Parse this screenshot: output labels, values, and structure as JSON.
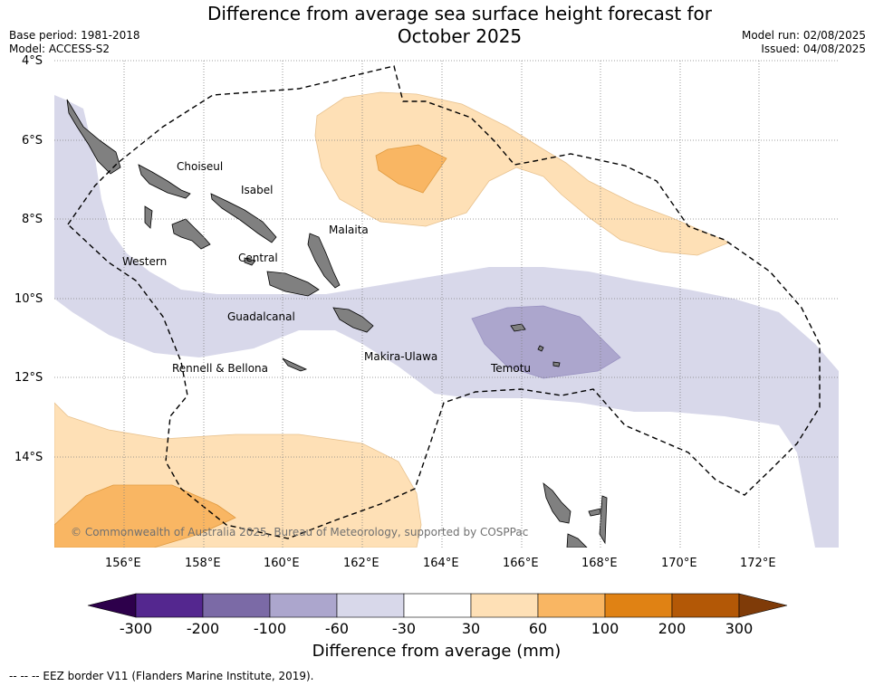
{
  "title": "Difference from average sea surface height forecast for October 2025",
  "title_line1": "Difference from average sea surface height forecast for",
  "title_line2": "October 2025",
  "meta_left": [
    "Base period: 1981-2018",
    "Model: ACCESS-S2"
  ],
  "meta_right": [
    "Model run: 02/08/2025",
    "Issued: 04/08/2025"
  ],
  "lat_ticks": [
    "4°S",
    "6°S",
    "8°S",
    "10°S",
    "12°S",
    "14°S"
  ],
  "lon_ticks": [
    "156°E",
    "158°E",
    "160°E",
    "162°E",
    "164°E",
    "166°E",
    "168°E",
    "170°E",
    "172°E"
  ],
  "regions": [
    "Choiseul",
    "Isabel",
    "Malaita",
    "Western",
    "Central",
    "Guadalcanal",
    "Makira-Ulawa",
    "Rennell & Bellona",
    "Temotu"
  ],
  "copyright": "© Commonwealth of Australia 2025, Bureau of Meteorology, supported by COSPPac",
  "colorbar": {
    "title": "Difference from average (mm)",
    "labels": [
      "-300",
      "-200",
      "-100",
      "-60",
      "-30",
      "30",
      "60",
      "100",
      "200",
      "300"
    ],
    "colors": [
      "#54278f",
      "#7b6aa6",
      "#aca6cd",
      "#d8d8ea",
      "#ffffff",
      "#fee0b6",
      "#f9b663",
      "#e08214",
      "#b35806"
    ],
    "extend_low": "#2d004b",
    "extend_high": "#7f3b08"
  },
  "colors": {
    "land": "#808080",
    "grid": "#808080",
    "eez_border": "#000000"
  },
  "footnote": "--  --  -- EEZ border V11 (Flanders Marine Institute, 2019)."
}
